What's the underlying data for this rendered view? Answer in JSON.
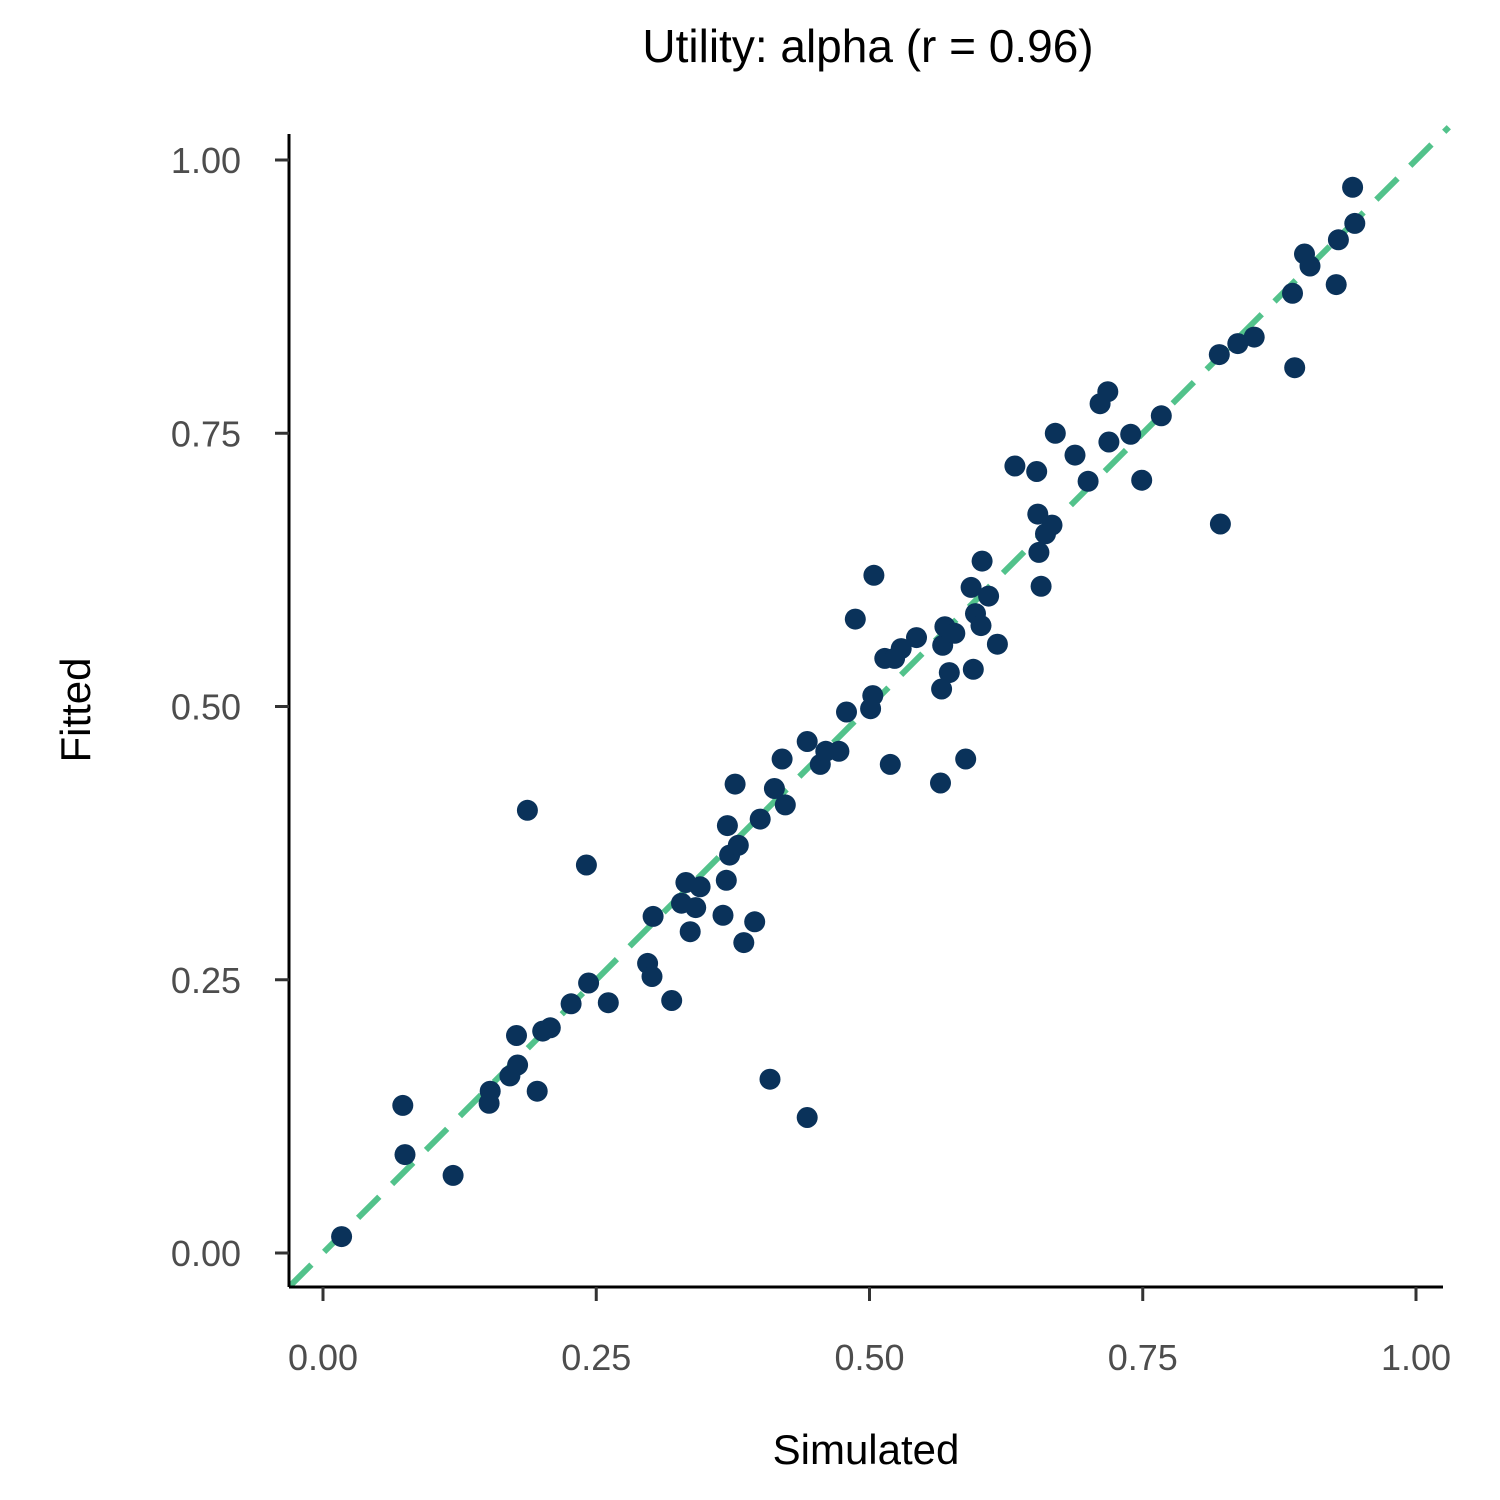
{
  "chart_data": {
    "type": "scatter",
    "title": "Utility: alpha (r = 0.96)",
    "xlabel": "Simulated",
    "ylabel": "Fitted",
    "xlim": [
      -0.03,
      1.03
    ],
    "ylim": [
      -0.03,
      1.03
    ],
    "x_ticks": [
      0.0,
      0.25,
      0.5,
      0.75,
      1.0
    ],
    "y_ticks": [
      0.0,
      0.25,
      0.5,
      0.75,
      1.0
    ],
    "x_tick_labels": [
      "0.00",
      "0.25",
      "0.50",
      "0.75",
      "1.00"
    ],
    "y_tick_labels": [
      "0.00",
      "0.25",
      "0.50",
      "0.75",
      "1.00"
    ],
    "grid": false,
    "reference_line": {
      "type": "identity",
      "style": "dashed",
      "color": "#52c28b"
    },
    "point_color": "#0a325a",
    "series": [
      {
        "points": [
          [
            0.017,
            0.015
          ],
          [
            0.073,
            0.135
          ],
          [
            0.075,
            0.09
          ],
          [
            0.119,
            0.071
          ],
          [
            0.152,
            0.137
          ],
          [
            0.153,
            0.148
          ],
          [
            0.171,
            0.162
          ],
          [
            0.178,
            0.172
          ],
          [
            0.177,
            0.199
          ],
          [
            0.187,
            0.405
          ],
          [
            0.196,
            0.148
          ],
          [
            0.201,
            0.203
          ],
          [
            0.208,
            0.206
          ],
          [
            0.227,
            0.228
          ],
          [
            0.241,
            0.355
          ],
          [
            0.243,
            0.247
          ],
          [
            0.261,
            0.229
          ],
          [
            0.297,
            0.265
          ],
          [
            0.301,
            0.253
          ],
          [
            0.302,
            0.308
          ],
          [
            0.319,
            0.231
          ],
          [
            0.328,
            0.32
          ],
          [
            0.332,
            0.339
          ],
          [
            0.336,
            0.294
          ],
          [
            0.341,
            0.316
          ],
          [
            0.345,
            0.335
          ],
          [
            0.366,
            0.309
          ],
          [
            0.369,
            0.341
          ],
          [
            0.37,
            0.391
          ],
          [
            0.372,
            0.364
          ],
          [
            0.377,
            0.429
          ],
          [
            0.38,
            0.373
          ],
          [
            0.385,
            0.284
          ],
          [
            0.395,
            0.303
          ],
          [
            0.4,
            0.397
          ],
          [
            0.409,
            0.159
          ],
          [
            0.413,
            0.425
          ],
          [
            0.42,
            0.452
          ],
          [
            0.423,
            0.41
          ],
          [
            0.443,
            0.124
          ],
          [
            0.443,
            0.468
          ],
          [
            0.455,
            0.447
          ],
          [
            0.46,
            0.459
          ],
          [
            0.472,
            0.459
          ],
          [
            0.479,
            0.495
          ],
          [
            0.487,
            0.58
          ],
          [
            0.501,
            0.498
          ],
          [
            0.503,
            0.51
          ],
          [
            0.504,
            0.62
          ],
          [
            0.514,
            0.544
          ],
          [
            0.519,
            0.447
          ],
          [
            0.523,
            0.544
          ],
          [
            0.529,
            0.553
          ],
          [
            0.543,
            0.563
          ],
          [
            0.565,
            0.43
          ],
          [
            0.566,
            0.516
          ],
          [
            0.567,
            0.556
          ],
          [
            0.569,
            0.573
          ],
          [
            0.573,
            0.531
          ],
          [
            0.578,
            0.567
          ],
          [
            0.588,
            0.452
          ],
          [
            0.593,
            0.609
          ],
          [
            0.595,
            0.534
          ],
          [
            0.597,
            0.585
          ],
          [
            0.602,
            0.574
          ],
          [
            0.603,
            0.633
          ],
          [
            0.609,
            0.601
          ],
          [
            0.617,
            0.557
          ],
          [
            0.633,
            0.72
          ],
          [
            0.653,
            0.715
          ],
          [
            0.654,
            0.676
          ],
          [
            0.655,
            0.641
          ],
          [
            0.657,
            0.61
          ],
          [
            0.661,
            0.658
          ],
          [
            0.667,
            0.666
          ],
          [
            0.67,
            0.75
          ],
          [
            0.688,
            0.73
          ],
          [
            0.7,
            0.706
          ],
          [
            0.711,
            0.777
          ],
          [
            0.718,
            0.788
          ],
          [
            0.719,
            0.742
          ],
          [
            0.739,
            0.749
          ],
          [
            0.749,
            0.707
          ],
          [
            0.767,
            0.766
          ],
          [
            0.82,
            0.822
          ],
          [
            0.821,
            0.667
          ],
          [
            0.837,
            0.832
          ],
          [
            0.852,
            0.838
          ],
          [
            0.887,
            0.878
          ],
          [
            0.889,
            0.81
          ],
          [
            0.898,
            0.914
          ],
          [
            0.903,
            0.903
          ],
          [
            0.927,
            0.886
          ],
          [
            0.929,
            0.927
          ],
          [
            0.942,
            0.975
          ],
          [
            0.944,
            0.942
          ]
        ]
      }
    ]
  }
}
